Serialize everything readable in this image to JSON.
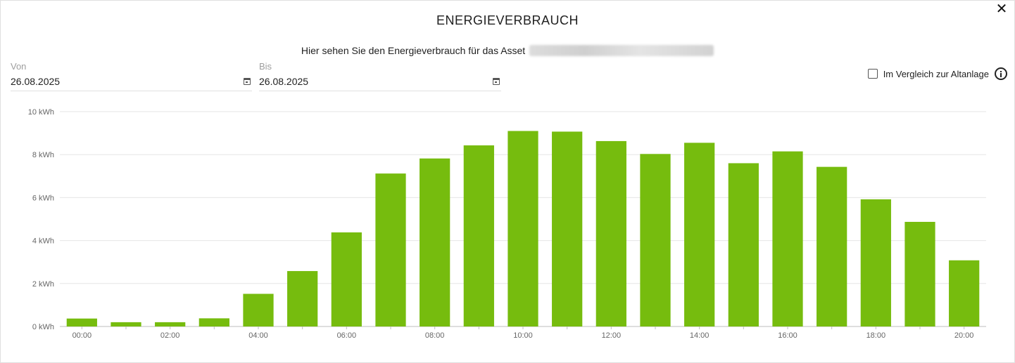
{
  "dialog": {
    "title": "ENERGIEVERBRAUCH",
    "close_label": "✕",
    "subtitle": "Hier sehen Sie den Energieverbrauch für das Asset"
  },
  "filters": {
    "from_label": "Von",
    "from_value": "26.08.2025",
    "to_label": "Bis",
    "to_value": "26.08.2025",
    "compare_label": "Im Vergleich zur Altanlage",
    "compare_checked": false
  },
  "colors": {
    "bar": "#76BC0E",
    "grid": "#e6e6e6",
    "axis_text": "#666666"
  },
  "chart_data": {
    "type": "bar",
    "categories": [
      "00:00",
      "01:00",
      "02:00",
      "03:00",
      "04:00",
      "05:00",
      "06:00",
      "07:00",
      "08:00",
      "09:00",
      "10:00",
      "11:00",
      "12:00",
      "13:00",
      "14:00",
      "15:00",
      "16:00",
      "17:00",
      "18:00",
      "19:00",
      "20:00"
    ],
    "tick_labels": [
      "00:00",
      "",
      "02:00",
      "",
      "04:00",
      "",
      "06:00",
      "",
      "08:00",
      "",
      "10:00",
      "",
      "12:00",
      "",
      "14:00",
      "",
      "16:00",
      "",
      "18:00",
      "",
      "20:00"
    ],
    "values": [
      0.37,
      0.2,
      0.2,
      0.38,
      1.52,
      2.58,
      4.38,
      7.12,
      7.82,
      8.43,
      9.1,
      9.07,
      8.63,
      8.03,
      8.55,
      7.6,
      8.15,
      7.43,
      5.92,
      4.87,
      3.08
    ],
    "yticks": [
      "0 kWh",
      "2 kWh",
      "4 kWh",
      "6 kWh",
      "8 kWh",
      "10 kWh"
    ],
    "ylim": [
      0,
      10
    ],
    "unit": "kWh",
    "grid": true,
    "legend": false
  }
}
